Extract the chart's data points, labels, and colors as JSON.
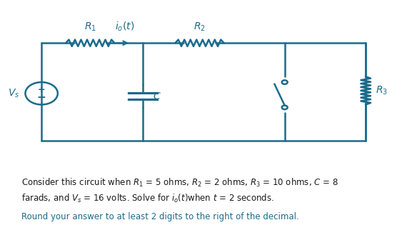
{
  "circuit_color": "#1a6b8a",
  "text_color": "#1a1a1a",
  "blue_text_color": "#1a6b8a",
  "background_color": "#ffffff",
  "figsize": [
    5.84,
    3.36
  ],
  "dpi": 100,
  "line1": "Consider this circuit when $R_1$ = 5 ohms, $R_2$ = 2 ohms, $R_3$ = 10 ohms, $C$ = 8",
  "line2": "farads, and $V_s$ = 16 volts. Solve for $i_o(t)$when $t$ = 2 seconds.",
  "line3": "Round your answer to at least 2 digits to the right of the decimal."
}
